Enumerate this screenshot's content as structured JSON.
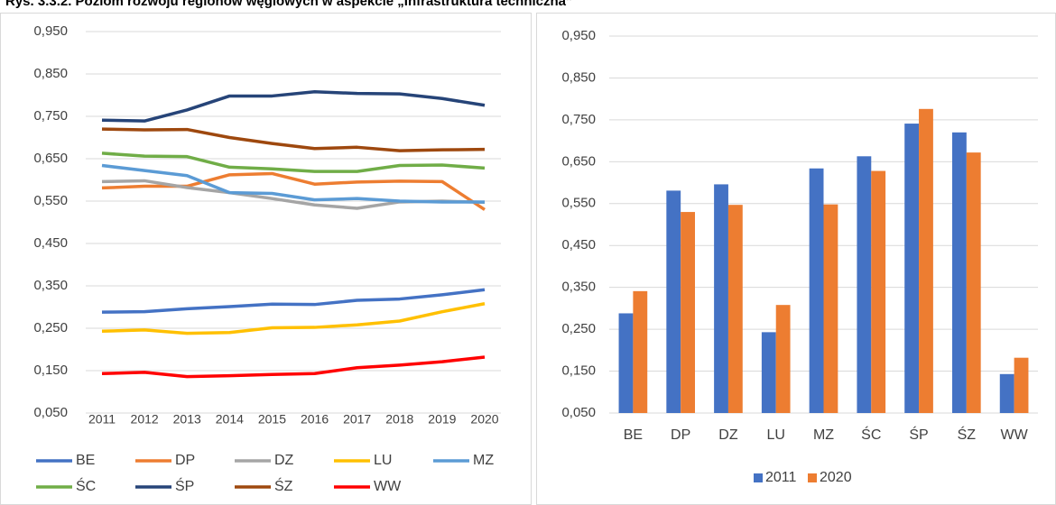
{
  "title": "Rys. 3.3.2. Poziom rozwoju regionów węglowych w aspekcie „Infrastruktura techniczna”",
  "chart_data": [
    {
      "type": "line",
      "categories": [
        "2011",
        "2012",
        "2013",
        "2014",
        "2015",
        "2016",
        "2017",
        "2018",
        "2019",
        "2020"
      ],
      "ylim": [
        0.05,
        0.95
      ],
      "yticks": [
        {
          "value": 0.05,
          "label": "0,050"
        },
        {
          "value": 0.15,
          "label": "0,150"
        },
        {
          "value": 0.25,
          "label": "0,250"
        },
        {
          "value": 0.35,
          "label": "0,350"
        },
        {
          "value": 0.45,
          "label": "0,450"
        },
        {
          "value": 0.55,
          "label": "0,550"
        },
        {
          "value": 0.65,
          "label": "0,650"
        },
        {
          "value": 0.75,
          "label": "0,750"
        },
        {
          "value": 0.85,
          "label": "0,850"
        },
        {
          "value": 0.95,
          "label": "0,950"
        }
      ],
      "grid": true,
      "series": [
        {
          "name": "BE",
          "color": "#4472c4",
          "values": [
            0.288,
            0.289,
            0.296,
            0.301,
            0.307,
            0.306,
            0.316,
            0.319,
            0.329,
            0.341
          ]
        },
        {
          "name": "DP",
          "color": "#ed7d31",
          "values": [
            0.581,
            0.585,
            0.585,
            0.612,
            0.615,
            0.59,
            0.595,
            0.597,
            0.596,
            0.53
          ]
        },
        {
          "name": "DZ",
          "color": "#a5a5a5",
          "values": [
            0.596,
            0.598,
            0.582,
            0.57,
            0.556,
            0.541,
            0.533,
            0.548,
            0.55,
            0.547
          ]
        },
        {
          "name": "LU",
          "color": "#ffc000",
          "values": [
            0.243,
            0.246,
            0.238,
            0.24,
            0.251,
            0.252,
            0.258,
            0.267,
            0.289,
            0.308
          ]
        },
        {
          "name": "MZ",
          "color": "#5b9bd5",
          "values": [
            0.634,
            0.622,
            0.61,
            0.57,
            0.568,
            0.553,
            0.556,
            0.55,
            0.548,
            0.548
          ]
        },
        {
          "name": "ŚC",
          "color": "#70ad47",
          "values": [
            0.663,
            0.656,
            0.655,
            0.63,
            0.626,
            0.62,
            0.62,
            0.634,
            0.635,
            0.628
          ]
        },
        {
          "name": "ŚP",
          "color": "#264478",
          "values": [
            0.741,
            0.739,
            0.765,
            0.798,
            0.798,
            0.808,
            0.804,
            0.803,
            0.792,
            0.776
          ]
        },
        {
          "name": "ŚZ",
          "color": "#9e480e",
          "values": [
            0.72,
            0.718,
            0.719,
            0.7,
            0.686,
            0.674,
            0.677,
            0.669,
            0.671,
            0.672
          ]
        },
        {
          "name": "WW",
          "color": "#ff0000",
          "values": [
            0.143,
            0.146,
            0.136,
            0.138,
            0.141,
            0.143,
            0.157,
            0.163,
            0.171,
            0.182
          ]
        }
      ]
    },
    {
      "type": "bar",
      "categories": [
        "BE",
        "DP",
        "DZ",
        "LU",
        "MZ",
        "ŚC",
        "ŚP",
        "ŚZ",
        "WW"
      ],
      "ylim": [
        0.05,
        0.95
      ],
      "yticks": [
        {
          "value": 0.05,
          "label": "0,050"
        },
        {
          "value": 0.15,
          "label": "0,150"
        },
        {
          "value": 0.25,
          "label": "0,250"
        },
        {
          "value": 0.35,
          "label": "0,350"
        },
        {
          "value": 0.45,
          "label": "0,450"
        },
        {
          "value": 0.55,
          "label": "0,550"
        },
        {
          "value": 0.65,
          "label": "0,650"
        },
        {
          "value": 0.75,
          "label": "0,750"
        },
        {
          "value": 0.85,
          "label": "0,850"
        },
        {
          "value": 0.95,
          "label": "0,950"
        }
      ],
      "grid": true,
      "series": [
        {
          "name": "2011",
          "color": "#4472c4",
          "values": [
            0.288,
            0.581,
            0.596,
            0.243,
            0.634,
            0.663,
            0.741,
            0.72,
            0.143
          ]
        },
        {
          "name": "2020",
          "color": "#ed7d31",
          "values": [
            0.341,
            0.53,
            0.547,
            0.308,
            0.548,
            0.628,
            0.776,
            0.672,
            0.182
          ]
        }
      ]
    }
  ]
}
